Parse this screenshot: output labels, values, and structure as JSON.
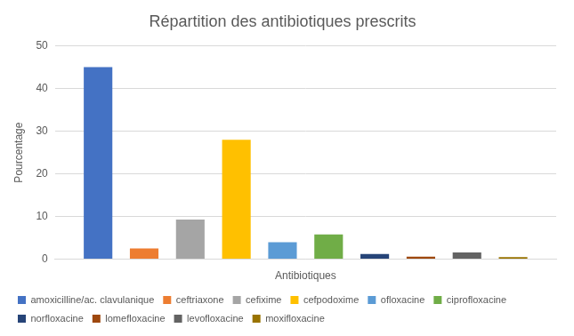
{
  "chart_data": {
    "type": "bar",
    "title": "Répartition des antibiotiques prescrits",
    "x_label": "Antibiotiques",
    "y_label": "Pourcentage",
    "categories": [
      null
    ],
    "series": [
      {
        "name": "amoxicilline/ac. clavulanique",
        "color": "#4472c4",
        "values": [
          45
        ]
      },
      {
        "name": "ceftriaxone",
        "color": "#ed7d31",
        "values": [
          2.5
        ]
      },
      {
        "name": "cefixime",
        "color": "#a5a5a5",
        "values": [
          9.3
        ]
      },
      {
        "name": "cefpodoxime",
        "color": "#ffc000",
        "values": [
          28
        ]
      },
      {
        "name": "ofloxacine",
        "color": "#5b9bd5",
        "values": [
          4
        ]
      },
      {
        "name": "ciprofloxacine",
        "color": "#70ad47",
        "values": [
          5.8
        ]
      },
      {
        "name": "norfloxacine",
        "color": "#264478",
        "values": [
          1.2
        ]
      },
      {
        "name": "lomefloxacine",
        "color": "#9e480e",
        "values": [
          0.6
        ]
      },
      {
        "name": "levofloxacine",
        "color": "#636363",
        "values": [
          1.6
        ]
      },
      {
        "name": "moxifloxacine",
        "color": "#997300",
        "values": [
          0.5
        ]
      }
    ],
    "ylim": [
      0,
      50
    ],
    "yticks": [
      0,
      10,
      20,
      30,
      40,
      50
    ],
    "grid": true,
    "legend": "bottom",
    "tick_labels": "y"
  }
}
